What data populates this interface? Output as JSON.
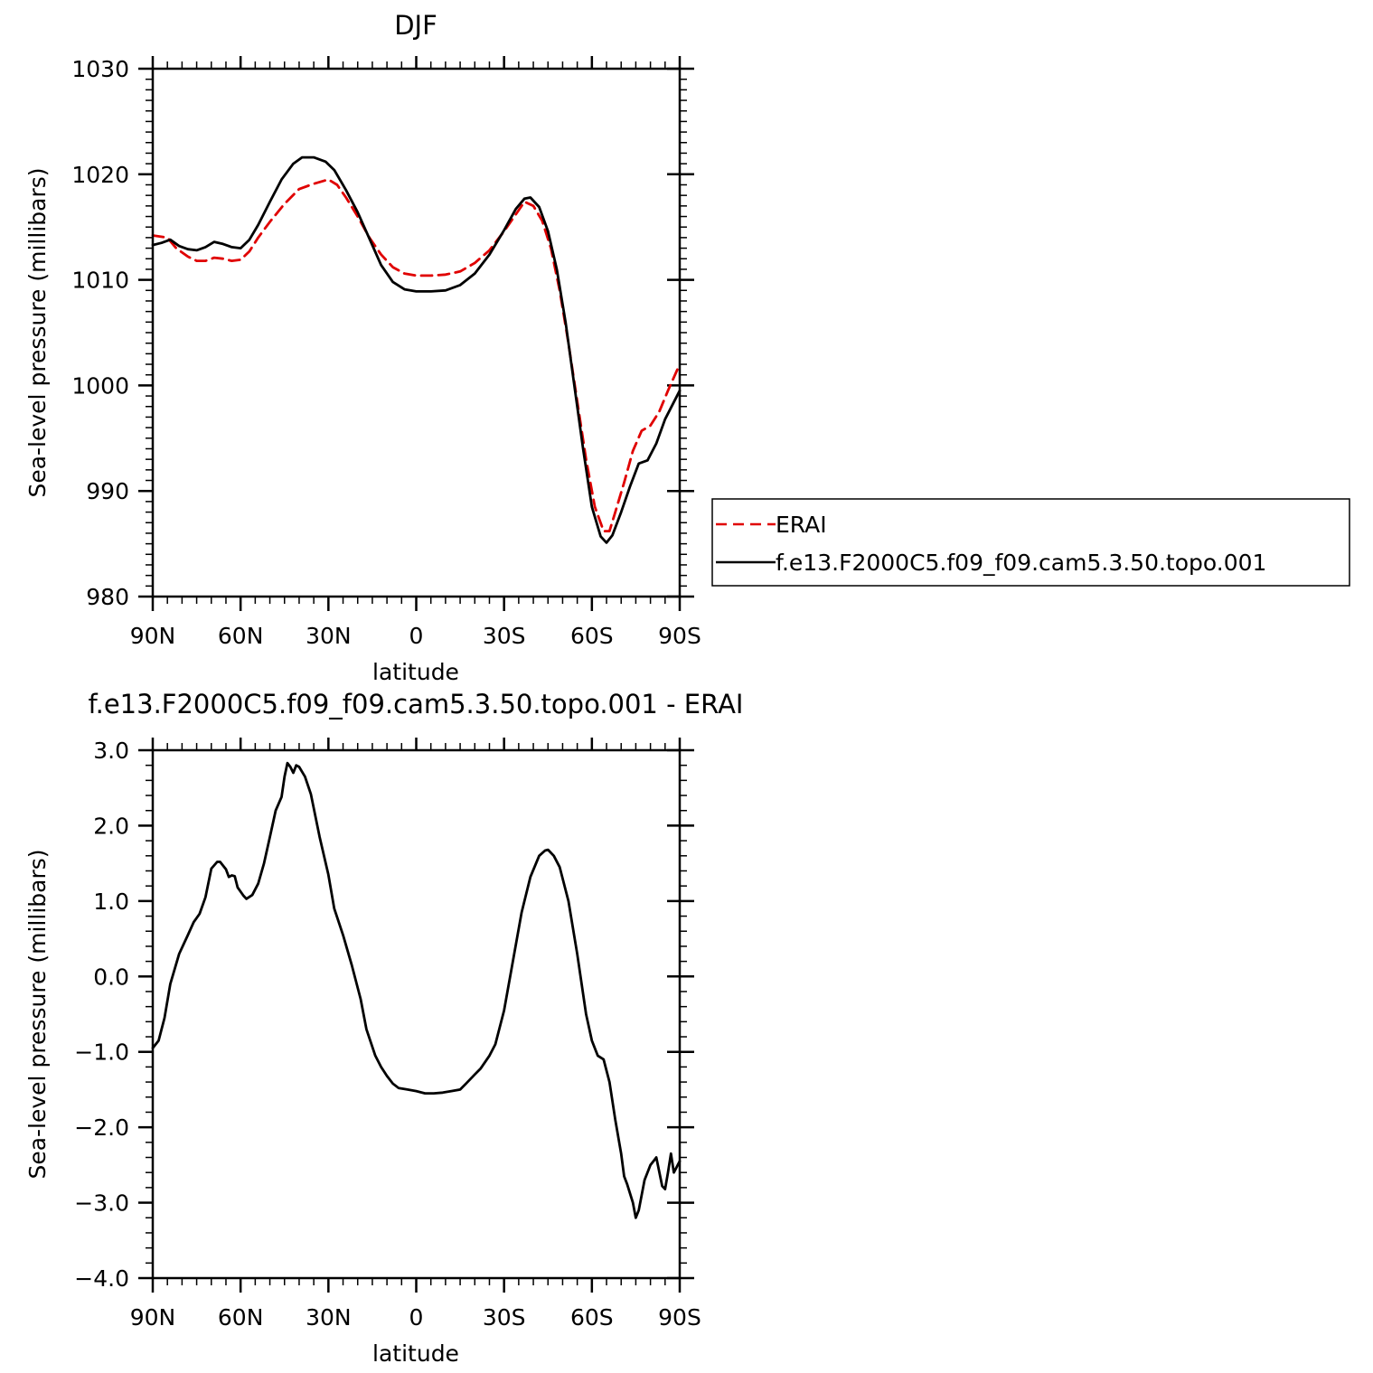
{
  "chart_data": [
    {
      "type": "line",
      "title": "DJF",
      "xlabel": "latitude",
      "ylabel": "Sea-level pressure (millibars)",
      "xlim": [
        90,
        -90
      ],
      "ylim": [
        980,
        1030
      ],
      "x_ticks": [
        {
          "value": 90,
          "label": "90N"
        },
        {
          "value": 60,
          "label": "60N"
        },
        {
          "value": 30,
          "label": "30N"
        },
        {
          "value": 0,
          "label": "0"
        },
        {
          "value": -30,
          "label": "30S"
        },
        {
          "value": -60,
          "label": "60S"
        },
        {
          "value": -90,
          "label": "90S"
        }
      ],
      "y_ticks": [
        {
          "value": 980,
          "label": "980"
        },
        {
          "value": 990,
          "label": "990"
        },
        {
          "value": 1000,
          "label": "1000"
        },
        {
          "value": 1010,
          "label": "1010"
        },
        {
          "value": 1020,
          "label": "1020"
        },
        {
          "value": 1030,
          "label": "1030"
        }
      ],
      "legend_position": "right",
      "series": [
        {
          "name": "ERAI",
          "color": "#e00000",
          "dash": "dashed",
          "points": [
            [
              90,
              1014.2
            ],
            [
              85,
              1014.0
            ],
            [
              82,
              1013.0
            ],
            [
              78,
              1012.2
            ],
            [
              75,
              1011.8
            ],
            [
              72,
              1011.8
            ],
            [
              69,
              1012.1
            ],
            [
              66,
              1012.0
            ],
            [
              63,
              1011.8
            ],
            [
              60,
              1011.9
            ],
            [
              57,
              1012.7
            ],
            [
              54,
              1014.0
            ],
            [
              50,
              1015.5
            ],
            [
              45,
              1017.2
            ],
            [
              40,
              1018.6
            ],
            [
              35,
              1019.1
            ],
            [
              30,
              1019.5
            ],
            [
              27,
              1019.0
            ],
            [
              24,
              1017.8
            ],
            [
              20,
              1016.0
            ],
            [
              16,
              1014.0
            ],
            [
              12,
              1012.4
            ],
            [
              8,
              1011.2
            ],
            [
              4,
              1010.6
            ],
            [
              0,
              1010.4
            ],
            [
              -5,
              1010.4
            ],
            [
              -10,
              1010.5
            ],
            [
              -15,
              1010.8
            ],
            [
              -20,
              1011.6
            ],
            [
              -25,
              1012.8
            ],
            [
              -30,
              1014.6
            ],
            [
              -35,
              1016.6
            ],
            [
              -37,
              1017.4
            ],
            [
              -40,
              1017.0
            ],
            [
              -43,
              1015.6
            ],
            [
              -46,
              1013.0
            ],
            [
              -49,
              1009.0
            ],
            [
              -52,
              1004.0
            ],
            [
              -55,
              998.5
            ],
            [
              -58,
              993.0
            ],
            [
              -61,
              988.5
            ],
            [
              -64,
              986.2
            ],
            [
              -66,
              986.2
            ],
            [
              -68,
              988.0
            ],
            [
              -71,
              990.8
            ],
            [
              -74,
              993.8
            ],
            [
              -77,
              995.7
            ],
            [
              -80,
              996.2
            ],
            [
              -83,
              997.5
            ],
            [
              -86,
              999.5
            ],
            [
              -90,
              1002.0
            ]
          ]
        },
        {
          "name": "f.e13.F2000C5.f09_f09.cam5.3.50.topo.001",
          "color": "#000000",
          "dash": "solid",
          "points": [
            [
              90,
              1013.3
            ],
            [
              87,
              1013.5
            ],
            [
              84,
              1013.8
            ],
            [
              81,
              1013.2
            ],
            [
              78,
              1012.9
            ],
            [
              75,
              1012.8
            ],
            [
              72,
              1013.1
            ],
            [
              69,
              1013.6
            ],
            [
              66,
              1013.4
            ],
            [
              63,
              1013.1
            ],
            [
              60,
              1013.0
            ],
            [
              57,
              1013.8
            ],
            [
              54,
              1015.2
            ],
            [
              50,
              1017.4
            ],
            [
              46,
              1019.5
            ],
            [
              42,
              1021.0
            ],
            [
              39,
              1021.6
            ],
            [
              35,
              1021.6
            ],
            [
              31,
              1021.2
            ],
            [
              28,
              1020.4
            ],
            [
              24,
              1018.5
            ],
            [
              20,
              1016.4
            ],
            [
              16,
              1013.9
            ],
            [
              12,
              1011.4
            ],
            [
              8,
              1009.8
            ],
            [
              4,
              1009.1
            ],
            [
              0,
              1008.9
            ],
            [
              -5,
              1008.9
            ],
            [
              -10,
              1009.0
            ],
            [
              -15,
              1009.5
            ],
            [
              -20,
              1010.6
            ],
            [
              -25,
              1012.4
            ],
            [
              -30,
              1014.7
            ],
            [
              -34,
              1016.7
            ],
            [
              -37,
              1017.7
            ],
            [
              -39,
              1017.8
            ],
            [
              -42,
              1016.9
            ],
            [
              -45,
              1014.6
            ],
            [
              -48,
              1011.0
            ],
            [
              -51,
              1006.0
            ],
            [
              -54,
              1000.0
            ],
            [
              -57,
              994.0
            ],
            [
              -60,
              988.5
            ],
            [
              -63,
              985.7
            ],
            [
              -65,
              985.1
            ],
            [
              -67,
              985.8
            ],
            [
              -70,
              988.0
            ],
            [
              -73,
              990.4
            ],
            [
              -76,
              992.6
            ],
            [
              -79,
              992.9
            ],
            [
              -82,
              994.5
            ],
            [
              -85,
              996.8
            ],
            [
              -90,
              999.5
            ]
          ]
        }
      ]
    },
    {
      "type": "line",
      "title": "f.e13.F2000C5.f09_f09.cam5.3.50.topo.001  -  ERAI",
      "xlabel": "latitude",
      "ylabel": "Sea-level pressure (millibars)",
      "xlim": [
        90,
        -90
      ],
      "ylim": [
        -4.0,
        3.0
      ],
      "x_ticks": [
        {
          "value": 90,
          "label": "90N"
        },
        {
          "value": 60,
          "label": "60N"
        },
        {
          "value": 30,
          "label": "30N"
        },
        {
          "value": 0,
          "label": "0"
        },
        {
          "value": -30,
          "label": "30S"
        },
        {
          "value": -60,
          "label": "60S"
        },
        {
          "value": -90,
          "label": "90S"
        }
      ],
      "y_ticks": [
        {
          "value": -4.0,
          "label": "−4.0"
        },
        {
          "value": -3.0,
          "label": "−3.0"
        },
        {
          "value": -2.0,
          "label": "−2.0"
        },
        {
          "value": -1.0,
          "label": "−1.0"
        },
        {
          "value": 0.0,
          "label": "0.0"
        },
        {
          "value": 1.0,
          "label": "1.0"
        },
        {
          "value": 2.0,
          "label": "2.0"
        },
        {
          "value": 3.0,
          "label": "3.0"
        }
      ],
      "series": [
        {
          "color": "#000000",
          "dash": "solid",
          "points": [
            [
              90,
              -0.95
            ],
            [
              88,
              -0.85
            ],
            [
              86,
              -0.55
            ],
            [
              84,
              -0.1
            ],
            [
              81,
              0.3
            ],
            [
              78,
              0.55
            ],
            [
              76,
              0.72
            ],
            [
              74,
              0.83
            ],
            [
              72,
              1.05
            ],
            [
              70,
              1.43
            ],
            [
              68,
              1.52
            ],
            [
              67,
              1.52
            ],
            [
              65,
              1.42
            ],
            [
              64,
              1.32
            ],
            [
              63,
              1.34
            ],
            [
              62,
              1.33
            ],
            [
              61,
              1.18
            ],
            [
              59,
              1.07
            ],
            [
              58,
              1.03
            ],
            [
              56,
              1.08
            ],
            [
              54,
              1.23
            ],
            [
              52,
              1.5
            ],
            [
              50,
              1.85
            ],
            [
              48,
              2.2
            ],
            [
              46,
              2.38
            ],
            [
              45,
              2.65
            ],
            [
              44,
              2.83
            ],
            [
              43,
              2.78
            ],
            [
              42,
              2.7
            ],
            [
              41,
              2.8
            ],
            [
              40,
              2.78
            ],
            [
              38,
              2.65
            ],
            [
              36,
              2.42
            ],
            [
              33,
              1.85
            ],
            [
              30,
              1.35
            ],
            [
              28,
              0.9
            ],
            [
              25,
              0.55
            ],
            [
              22,
              0.15
            ],
            [
              19,
              -0.3
            ],
            [
              17,
              -0.7
            ],
            [
              14,
              -1.05
            ],
            [
              12,
              -1.2
            ],
            [
              10,
              -1.32
            ],
            [
              8,
              -1.42
            ],
            [
              6,
              -1.48
            ],
            [
              3,
              -1.5
            ],
            [
              0,
              -1.52
            ],
            [
              -3,
              -1.55
            ],
            [
              -6,
              -1.55
            ],
            [
              -9,
              -1.54
            ],
            [
              -12,
              -1.52
            ],
            [
              -15,
              -1.5
            ],
            [
              -17,
              -1.42
            ],
            [
              -20,
              -1.3
            ],
            [
              -22,
              -1.22
            ],
            [
              -25,
              -1.05
            ],
            [
              -27,
              -0.9
            ],
            [
              -30,
              -0.45
            ],
            [
              -33,
              0.2
            ],
            [
              -36,
              0.85
            ],
            [
              -39,
              1.32
            ],
            [
              -42,
              1.6
            ],
            [
              -44,
              1.67
            ],
            [
              -45,
              1.68
            ],
            [
              -47,
              1.6
            ],
            [
              -49,
              1.45
            ],
            [
              -52,
              1.0
            ],
            [
              -55,
              0.3
            ],
            [
              -58,
              -0.5
            ],
            [
              -60,
              -0.85
            ],
            [
              -62,
              -1.05
            ],
            [
              -64,
              -1.1
            ],
            [
              -66,
              -1.4
            ],
            [
              -68,
              -1.9
            ],
            [
              -70,
              -2.35
            ],
            [
              -71,
              -2.65
            ],
            [
              -72,
              -2.75
            ],
            [
              -74,
              -3.0
            ],
            [
              -75,
              -3.2
            ],
            [
              -76,
              -3.1
            ],
            [
              -78,
              -2.7
            ],
            [
              -80,
              -2.5
            ],
            [
              -81,
              -2.45
            ],
            [
              -82,
              -2.4
            ],
            [
              -84,
              -2.78
            ],
            [
              -85,
              -2.82
            ],
            [
              -86,
              -2.6
            ],
            [
              -87,
              -2.35
            ],
            [
              -88,
              -2.6
            ],
            [
              -90,
              -2.45
            ]
          ]
        }
      ]
    }
  ]
}
